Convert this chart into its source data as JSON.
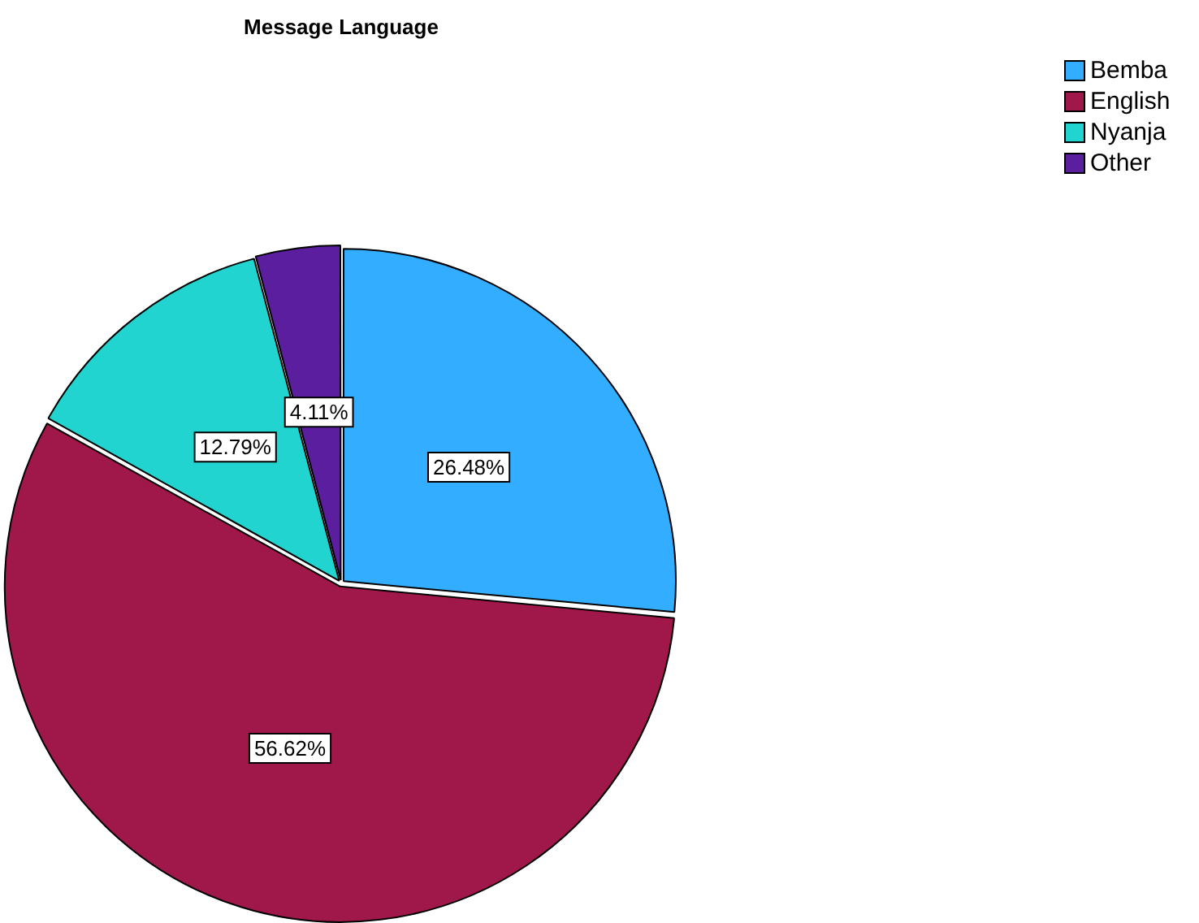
{
  "chart_data": {
    "type": "pie",
    "title": "Message Language",
    "categories": [
      "Bemba",
      "English",
      "Nyanja",
      "Other"
    ],
    "values": [
      26.48,
      56.62,
      12.79,
      4.11
    ],
    "colors": [
      "#33adff",
      "#a0174a",
      "#21d4d0",
      "#5a1e9e"
    ],
    "value_labels": [
      "26.48%",
      "56.62%",
      "12.79%",
      "4.11%"
    ],
    "legend": "top right"
  }
}
